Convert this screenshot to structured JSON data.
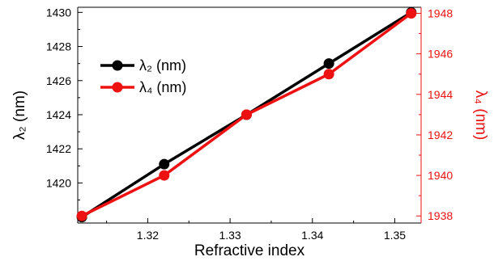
{
  "chart_data": {
    "type": "line",
    "xlabel": "Refractive index",
    "ylabel_left": "λ₂ (nm)",
    "ylabel_right": "λ₄ (nm)",
    "xlim": [
      1.3115,
      1.3532
    ],
    "ylim_left": [
      1417.65,
      1430.3
    ],
    "ylim_right": [
      1937.65,
      1948.3
    ],
    "xticks": [
      1.32,
      1.33,
      1.34,
      1.35
    ],
    "xtick_labels": [
      "1.32",
      "1.33",
      "1.34",
      "1.35"
    ],
    "yticks_left": [
      1420,
      1422,
      1424,
      1426,
      1428,
      1430
    ],
    "ytick_labels_left": [
      "1420",
      "1422",
      "1424",
      "1426",
      "1428",
      "1430"
    ],
    "yticks_right": [
      1938,
      1940,
      1942,
      1944,
      1946,
      1948
    ],
    "ytick_labels_right": [
      "1938",
      "1940",
      "1942",
      "1944",
      "1946",
      "1948"
    ],
    "grid": false,
    "legend_position": "upper-left",
    "series": [
      {
        "name": "λ₂ (nm)",
        "axis": "left",
        "color": "#000000",
        "x": [
          1.312,
          1.322,
          1.332,
          1.342,
          1.352
        ],
        "y": [
          1418.0,
          1421.1,
          1424.0,
          1427.0,
          1430.0
        ]
      },
      {
        "name": "λ₄ (nm)",
        "axis": "right",
        "color": "#ee1111",
        "x": [
          1.312,
          1.322,
          1.332,
          1.342,
          1.352
        ],
        "y": [
          1938.0,
          1940.0,
          1943.0,
          1945.0,
          1948.0
        ]
      }
    ]
  }
}
